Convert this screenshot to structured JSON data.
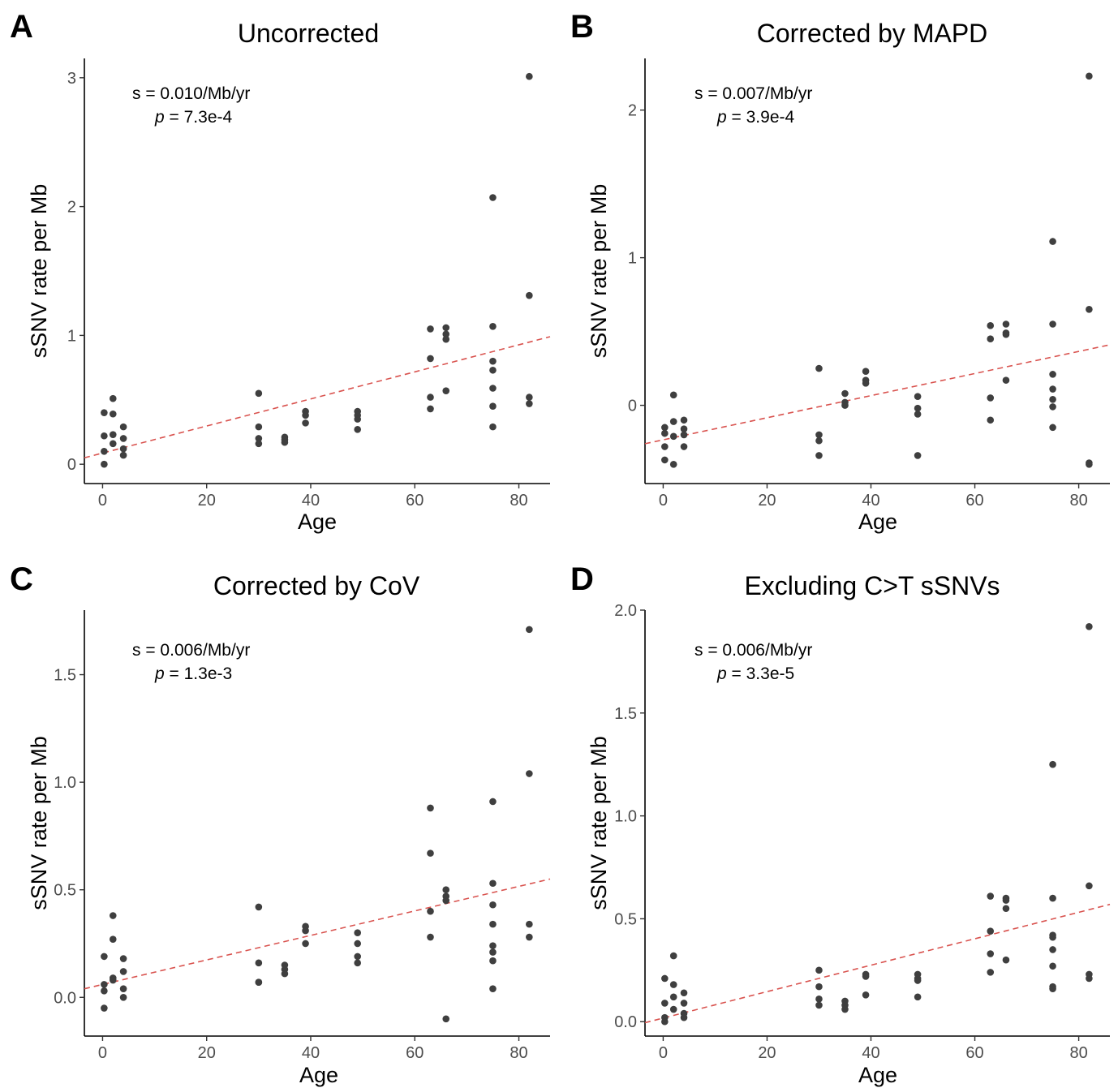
{
  "chart_data": [
    {
      "type": "scatter",
      "panel": "A",
      "title": "Uncorrected",
      "xlabel": "Age",
      "ylabel": "sSNV rate per Mb",
      "xlim": [
        -3.5,
        86
      ],
      "ylim": [
        -0.15,
        3.15
      ],
      "xticks": [
        0,
        20,
        40,
        60,
        80
      ],
      "yticks": [
        0,
        1,
        2,
        3
      ],
      "ytick_labels": [
        "0",
        "1",
        "2",
        "3"
      ],
      "annotation": {
        "s": "s = 0.010/Mb/yr",
        "p_label": "p",
        "p_value": " = 7.3e-4"
      },
      "trend": {
        "x": [
          -3.5,
          86
        ],
        "y": [
          0.05,
          0.99
        ]
      },
      "points": [
        {
          "x": 0.3,
          "y": 0.4
        },
        {
          "x": 0.3,
          "y": 0.22
        },
        {
          "x": 0.3,
          "y": 0.1
        },
        {
          "x": 0.3,
          "y": 0.0
        },
        {
          "x": 2,
          "y": 0.51
        },
        {
          "x": 2,
          "y": 0.39
        },
        {
          "x": 2,
          "y": 0.23
        },
        {
          "x": 2,
          "y": 0.16
        },
        {
          "x": 4,
          "y": 0.29
        },
        {
          "x": 4,
          "y": 0.2
        },
        {
          "x": 4,
          "y": 0.12
        },
        {
          "x": 4,
          "y": 0.07
        },
        {
          "x": 30,
          "y": 0.55
        },
        {
          "x": 30,
          "y": 0.29
        },
        {
          "x": 30,
          "y": 0.2
        },
        {
          "x": 30,
          "y": 0.16
        },
        {
          "x": 35,
          "y": 0.21
        },
        {
          "x": 35,
          "y": 0.19
        },
        {
          "x": 35,
          "y": 0.17
        },
        {
          "x": 39,
          "y": 0.41
        },
        {
          "x": 39,
          "y": 0.38
        },
        {
          "x": 39,
          "y": 0.32
        },
        {
          "x": 49,
          "y": 0.41
        },
        {
          "x": 49,
          "y": 0.38
        },
        {
          "x": 49,
          "y": 0.35
        },
        {
          "x": 49,
          "y": 0.27
        },
        {
          "x": 63,
          "y": 1.05
        },
        {
          "x": 63,
          "y": 0.82
        },
        {
          "x": 63,
          "y": 0.52
        },
        {
          "x": 63,
          "y": 0.43
        },
        {
          "x": 66,
          "y": 1.06
        },
        {
          "x": 66,
          "y": 1.01
        },
        {
          "x": 66,
          "y": 0.97
        },
        {
          "x": 66,
          "y": 0.57
        },
        {
          "x": 75,
          "y": 2.07
        },
        {
          "x": 75,
          "y": 1.07
        },
        {
          "x": 75,
          "y": 0.8
        },
        {
          "x": 75,
          "y": 0.73
        },
        {
          "x": 75,
          "y": 0.59
        },
        {
          "x": 75,
          "y": 0.45
        },
        {
          "x": 75,
          "y": 0.29
        },
        {
          "x": 82,
          "y": 3.01
        },
        {
          "x": 82,
          "y": 1.31
        },
        {
          "x": 82,
          "y": 0.52
        },
        {
          "x": 82,
          "y": 0.47
        }
      ]
    },
    {
      "type": "scatter",
      "panel": "B",
      "title": "Corrected by MAPD",
      "xlabel": "Age",
      "ylabel": "sSNV rate per Mb",
      "xlim": [
        -3.5,
        86
      ],
      "ylim": [
        -0.53,
        2.35
      ],
      "xticks": [
        0,
        20,
        40,
        60,
        80
      ],
      "yticks": [
        0,
        1,
        2
      ],
      "ytick_labels": [
        "0",
        "1",
        "2"
      ],
      "annotation": {
        "s": "s = 0.007/Mb/yr",
        "p_label": "p",
        "p_value": " = 3.9e-4"
      },
      "trend": {
        "x": [
          -3.5,
          86
        ],
        "y": [
          -0.26,
          0.41
        ]
      },
      "points": [
        {
          "x": 0.3,
          "y": -0.15
        },
        {
          "x": 0.3,
          "y": -0.19
        },
        {
          "x": 0.3,
          "y": -0.28
        },
        {
          "x": 0.3,
          "y": -0.37
        },
        {
          "x": 2,
          "y": 0.07
        },
        {
          "x": 2,
          "y": -0.11
        },
        {
          "x": 2,
          "y": -0.21
        },
        {
          "x": 2,
          "y": -0.4
        },
        {
          "x": 4,
          "y": -0.1
        },
        {
          "x": 4,
          "y": -0.16
        },
        {
          "x": 4,
          "y": -0.2
        },
        {
          "x": 4,
          "y": -0.28
        },
        {
          "x": 30,
          "y": 0.25
        },
        {
          "x": 30,
          "y": -0.2
        },
        {
          "x": 30,
          "y": -0.24
        },
        {
          "x": 30,
          "y": -0.34
        },
        {
          "x": 35,
          "y": 0.08
        },
        {
          "x": 35,
          "y": 0.02
        },
        {
          "x": 35,
          "y": 0.0
        },
        {
          "x": 39,
          "y": 0.23
        },
        {
          "x": 39,
          "y": 0.17
        },
        {
          "x": 39,
          "y": 0.15
        },
        {
          "x": 49,
          "y": 0.06
        },
        {
          "x": 49,
          "y": -0.02
        },
        {
          "x": 49,
          "y": -0.06
        },
        {
          "x": 49,
          "y": -0.34
        },
        {
          "x": 63,
          "y": 0.54
        },
        {
          "x": 63,
          "y": 0.45
        },
        {
          "x": 63,
          "y": 0.05
        },
        {
          "x": 63,
          "y": -0.1
        },
        {
          "x": 66,
          "y": 0.55
        },
        {
          "x": 66,
          "y": 0.49
        },
        {
          "x": 66,
          "y": 0.48
        },
        {
          "x": 66,
          "y": 0.17
        },
        {
          "x": 75,
          "y": 1.11
        },
        {
          "x": 75,
          "y": 0.55
        },
        {
          "x": 75,
          "y": 0.21
        },
        {
          "x": 75,
          "y": 0.11
        },
        {
          "x": 75,
          "y": 0.04
        },
        {
          "x": 75,
          "y": -0.01
        },
        {
          "x": 75,
          "y": -0.15
        },
        {
          "x": 82,
          "y": 2.23
        },
        {
          "x": 82,
          "y": 0.65
        },
        {
          "x": 82,
          "y": -0.39
        },
        {
          "x": 82,
          "y": -0.4
        }
      ]
    },
    {
      "type": "scatter",
      "panel": "C",
      "title": "Corrected by CoV",
      "xlabel": "Age",
      "ylabel": "sSNV rate per Mb",
      "xlim": [
        -3.5,
        86
      ],
      "ylim": [
        -0.18,
        1.8
      ],
      "xticks": [
        0,
        20,
        40,
        60,
        80
      ],
      "yticks": [
        0,
        0.5,
        1,
        1.5
      ],
      "ytick_labels": [
        "0.0",
        "0.5",
        "1.0",
        "1.5"
      ],
      "annotation": {
        "s": "s = 0.006/Mb/yr",
        "p_label": "p",
        "p_value": " = 1.3e-3"
      },
      "trend": {
        "x": [
          -3.5,
          86
        ],
        "y": [
          0.04,
          0.55
        ]
      },
      "points": [
        {
          "x": 0.3,
          "y": 0.19
        },
        {
          "x": 0.3,
          "y": 0.06
        },
        {
          "x": 0.3,
          "y": 0.03
        },
        {
          "x": 0.3,
          "y": -0.05
        },
        {
          "x": 2,
          "y": 0.38
        },
        {
          "x": 2,
          "y": 0.27
        },
        {
          "x": 2,
          "y": 0.09
        },
        {
          "x": 2,
          "y": 0.08
        },
        {
          "x": 4,
          "y": 0.18
        },
        {
          "x": 4,
          "y": 0.12
        },
        {
          "x": 4,
          "y": 0.04
        },
        {
          "x": 4,
          "y": 0.0
        },
        {
          "x": 30,
          "y": 0.42
        },
        {
          "x": 30,
          "y": 0.16
        },
        {
          "x": 30,
          "y": 0.07
        },
        {
          "x": 30,
          "y": 0.07
        },
        {
          "x": 35,
          "y": 0.15
        },
        {
          "x": 35,
          "y": 0.13
        },
        {
          "x": 35,
          "y": 0.11
        },
        {
          "x": 39,
          "y": 0.33
        },
        {
          "x": 39,
          "y": 0.31
        },
        {
          "x": 39,
          "y": 0.25
        },
        {
          "x": 49,
          "y": 0.3
        },
        {
          "x": 49,
          "y": 0.25
        },
        {
          "x": 49,
          "y": 0.19
        },
        {
          "x": 49,
          "y": 0.16
        },
        {
          "x": 63,
          "y": 0.88
        },
        {
          "x": 63,
          "y": 0.67
        },
        {
          "x": 63,
          "y": 0.4
        },
        {
          "x": 63,
          "y": 0.28
        },
        {
          "x": 66,
          "y": 0.5
        },
        {
          "x": 66,
          "y": 0.47
        },
        {
          "x": 66,
          "y": 0.45
        },
        {
          "x": 66,
          "y": -0.1
        },
        {
          "x": 75,
          "y": 0.91
        },
        {
          "x": 75,
          "y": 0.53
        },
        {
          "x": 75,
          "y": 0.43
        },
        {
          "x": 75,
          "y": 0.34
        },
        {
          "x": 75,
          "y": 0.24
        },
        {
          "x": 75,
          "y": 0.21
        },
        {
          "x": 75,
          "y": 0.17
        },
        {
          "x": 75,
          "y": 0.04
        },
        {
          "x": 82,
          "y": 1.71
        },
        {
          "x": 82,
          "y": 1.04
        },
        {
          "x": 82,
          "y": 0.34
        },
        {
          "x": 82,
          "y": 0.28
        }
      ]
    },
    {
      "type": "scatter",
      "panel": "D",
      "title": "Excluding C>T sSNVs",
      "xlabel": "Age",
      "ylabel": "sSNV rate per Mb",
      "xlim": [
        -3.5,
        86
      ],
      "ylim": [
        -0.07,
        2.0
      ],
      "xticks": [
        0,
        20,
        40,
        60,
        80
      ],
      "yticks": [
        0,
        0.5,
        1,
        1.5,
        2
      ],
      "ytick_labels": [
        "0.0",
        "0.5",
        "1.0",
        "1.5",
        "2.0"
      ],
      "annotation": {
        "s": "s = 0.006/Mb/yr",
        "p_label": "p",
        "p_value": " = 3.3e-5"
      },
      "trend": {
        "x": [
          -3.5,
          86
        ],
        "y": [
          -0.005,
          0.57
        ]
      },
      "points": [
        {
          "x": 0.3,
          "y": 0.21
        },
        {
          "x": 0.3,
          "y": 0.09
        },
        {
          "x": 0.3,
          "y": 0.02
        },
        {
          "x": 0.3,
          "y": 0.0
        },
        {
          "x": 2,
          "y": 0.32
        },
        {
          "x": 2,
          "y": 0.18
        },
        {
          "x": 2,
          "y": 0.12
        },
        {
          "x": 2,
          "y": 0.06
        },
        {
          "x": 4,
          "y": 0.14
        },
        {
          "x": 4,
          "y": 0.09
        },
        {
          "x": 4,
          "y": 0.04
        },
        {
          "x": 4,
          "y": 0.02
        },
        {
          "x": 30,
          "y": 0.25
        },
        {
          "x": 30,
          "y": 0.17
        },
        {
          "x": 30,
          "y": 0.11
        },
        {
          "x": 30,
          "y": 0.08
        },
        {
          "x": 35,
          "y": 0.1
        },
        {
          "x": 35,
          "y": 0.08
        },
        {
          "x": 35,
          "y": 0.06
        },
        {
          "x": 39,
          "y": 0.23
        },
        {
          "x": 39,
          "y": 0.22
        },
        {
          "x": 39,
          "y": 0.13
        },
        {
          "x": 49,
          "y": 0.23
        },
        {
          "x": 49,
          "y": 0.21
        },
        {
          "x": 49,
          "y": 0.2
        },
        {
          "x": 49,
          "y": 0.12
        },
        {
          "x": 63,
          "y": 0.61
        },
        {
          "x": 63,
          "y": 0.44
        },
        {
          "x": 63,
          "y": 0.33
        },
        {
          "x": 63,
          "y": 0.24
        },
        {
          "x": 66,
          "y": 0.6
        },
        {
          "x": 66,
          "y": 0.59
        },
        {
          "x": 66,
          "y": 0.55
        },
        {
          "x": 66,
          "y": 0.3
        },
        {
          "x": 75,
          "y": 1.25
        },
        {
          "x": 75,
          "y": 0.6
        },
        {
          "x": 75,
          "y": 0.42
        },
        {
          "x": 75,
          "y": 0.41
        },
        {
          "x": 75,
          "y": 0.35
        },
        {
          "x": 75,
          "y": 0.27
        },
        {
          "x": 75,
          "y": 0.17
        },
        {
          "x": 75,
          "y": 0.16
        },
        {
          "x": 82,
          "y": 1.92
        },
        {
          "x": 82,
          "y": 0.66
        },
        {
          "x": 82,
          "y": 0.23
        },
        {
          "x": 82,
          "y": 0.21
        }
      ]
    }
  ]
}
